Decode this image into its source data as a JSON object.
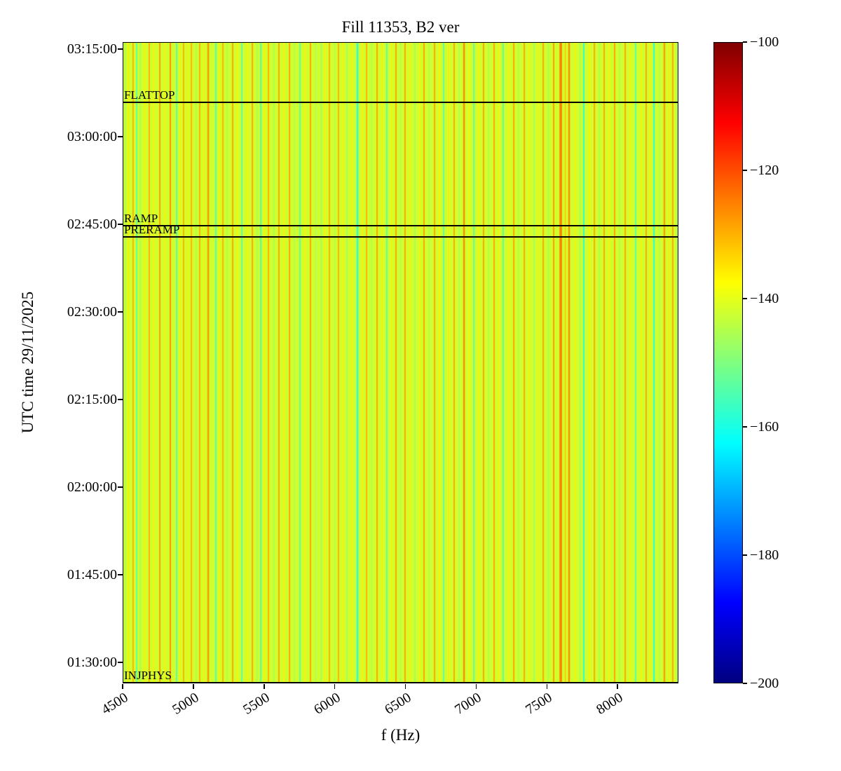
{
  "chart_data": {
    "type": "heatmap",
    "title": "Fill 11353, B2 ver",
    "xlabel": "f (Hz)",
    "ylabel": "UTC time 29/11/2025",
    "time_axis_date": "29/11/2025",
    "x_range_hz": [
      4500,
      8430
    ],
    "x_ticks_hz": [
      4500,
      5000,
      5500,
      6000,
      6500,
      7000,
      7500,
      8000
    ],
    "y_ticks_top_to_bottom": [
      "03:15:00",
      "03:00:00",
      "02:45:00",
      "02:30:00",
      "02:15:00",
      "02:00:00",
      "01:45:00",
      "01:30:00"
    ],
    "y_tick_fracs_from_top": [
      0.011,
      0.1476,
      0.2842,
      0.4208,
      0.5574,
      0.694,
      0.8306,
      0.9672
    ],
    "colorbar": {
      "colormap": "jet",
      "range_db": [
        -200,
        -100
      ],
      "tick_labels_top_to_bottom": [
        "−100",
        "−120",
        "−140",
        "−160",
        "−180",
        "−200"
      ],
      "tick_fracs_from_top": [
        0,
        0.2,
        0.4,
        0.6,
        0.8,
        1
      ]
    },
    "background_db": -142,
    "beam_modes": [
      {
        "label": "FLATTOP",
        "line_frac_from_top": 0.094
      },
      {
        "label": "RAMP",
        "line_frac_from_top": 0.286
      },
      {
        "label": "PRERAMP",
        "line_frac_from_top": 0.304
      },
      {
        "label": "INJPHYS",
        "line_frac_from_top": 0.999
      }
    ],
    "stripe_format": [
      "f_hz",
      "db",
      "width_hz"
    ],
    "stripes": [
      [
        4520,
        -146,
        8
      ],
      [
        4540,
        -136,
        8
      ],
      [
        4574,
        -130,
        10
      ],
      [
        4600,
        -156,
        8
      ],
      [
        4624,
        -146,
        8
      ],
      [
        4656,
        -136,
        8
      ],
      [
        4688,
        -130,
        10
      ],
      [
        4720,
        -136,
        8
      ],
      [
        4763,
        -128,
        10
      ],
      [
        4800,
        -136,
        8
      ],
      [
        4837,
        -127,
        10
      ],
      [
        4882,
        -157,
        8
      ],
      [
        4905,
        -136,
        8
      ],
      [
        4931,
        -130,
        10
      ],
      [
        4960,
        -136,
        8
      ],
      [
        4986,
        -130,
        10
      ],
      [
        5020,
        -146,
        8
      ],
      [
        5045,
        -130,
        10
      ],
      [
        5075,
        -136,
        8
      ],
      [
        5105,
        -127,
        12
      ],
      [
        5159,
        -157,
        8
      ],
      [
        5185,
        -136,
        8
      ],
      [
        5209,
        -130,
        10
      ],
      [
        5240,
        -146,
        8
      ],
      [
        5278,
        -129,
        10
      ],
      [
        5310,
        -136,
        8
      ],
      [
        5343,
        -156,
        8
      ],
      [
        5380,
        -136,
        8
      ],
      [
        5417,
        -129,
        10
      ],
      [
        5450,
        -146,
        8
      ],
      [
        5477,
        -157,
        8
      ],
      [
        5505,
        -136,
        8
      ],
      [
        5531,
        -130,
        10
      ],
      [
        5570,
        -146,
        8
      ],
      [
        5605,
        -129,
        10
      ],
      [
        5640,
        -136,
        8
      ],
      [
        5680,
        -129,
        10
      ],
      [
        5715,
        -146,
        8
      ],
      [
        5754,
        -156,
        8
      ],
      [
        5790,
        -136,
        8
      ],
      [
        5828,
        -129,
        10
      ],
      [
        5865,
        -146,
        8
      ],
      [
        5903,
        -147,
        8
      ],
      [
        5930,
        -136,
        8
      ],
      [
        5962,
        -130,
        10
      ],
      [
        6000,
        -146,
        8
      ],
      [
        6026,
        -130,
        10
      ],
      [
        6060,
        -136,
        8
      ],
      [
        6086,
        -147,
        8
      ],
      [
        6120,
        -136,
        8
      ],
      [
        6160,
        -159,
        12
      ],
      [
        6195,
        -136,
        8
      ],
      [
        6225,
        -130,
        10
      ],
      [
        6260,
        -146,
        8
      ],
      [
        6299,
        -129,
        10
      ],
      [
        6335,
        -136,
        8
      ],
      [
        6368,
        -156,
        8
      ],
      [
        6400,
        -136,
        8
      ],
      [
        6433,
        -129,
        10
      ],
      [
        6465,
        -146,
        8
      ],
      [
        6497,
        -129,
        10
      ],
      [
        6530,
        -136,
        8
      ],
      [
        6567,
        -147,
        8
      ],
      [
        6600,
        -136,
        8
      ],
      [
        6631,
        -129,
        10
      ],
      [
        6668,
        -146,
        8
      ],
      [
        6706,
        -129,
        10
      ],
      [
        6740,
        -136,
        8
      ],
      [
        6770,
        -156,
        8
      ],
      [
        6805,
        -136,
        8
      ],
      [
        6844,
        -129,
        10
      ],
      [
        6880,
        -146,
        8
      ],
      [
        6914,
        -126,
        12
      ],
      [
        6950,
        -136,
        8
      ],
      [
        6983,
        -156,
        8
      ],
      [
        7015,
        -136,
        8
      ],
      [
        7052,
        -129,
        10
      ],
      [
        7090,
        -146,
        8
      ],
      [
        7127,
        -129,
        10
      ],
      [
        7160,
        -136,
        8
      ],
      [
        7191,
        -156,
        8
      ],
      [
        7230,
        -136,
        8
      ],
      [
        7266,
        -129,
        10
      ],
      [
        7300,
        -146,
        8
      ],
      [
        7340,
        -129,
        10
      ],
      [
        7375,
        -136,
        8
      ],
      [
        7409,
        -147,
        8
      ],
      [
        7440,
        -136,
        8
      ],
      [
        7474,
        -129,
        10
      ],
      [
        7510,
        -146,
        8
      ],
      [
        7548,
        -128,
        10
      ],
      [
        7598,
        -125,
        18
      ],
      [
        7630,
        -132,
        8
      ],
      [
        7657,
        -126,
        12
      ],
      [
        7700,
        -136,
        8
      ],
      [
        7735,
        -146,
        8
      ],
      [
        7761,
        -158,
        10
      ],
      [
        7800,
        -136,
        8
      ],
      [
        7836,
        -129,
        10
      ],
      [
        7870,
        -146,
        8
      ],
      [
        7905,
        -129,
        10
      ],
      [
        7940,
        -136,
        8
      ],
      [
        7979,
        -129,
        10
      ],
      [
        8015,
        -146,
        8
      ],
      [
        8054,
        -129,
        10
      ],
      [
        8090,
        -136,
        8
      ],
      [
        8128,
        -156,
        8
      ],
      [
        8165,
        -136,
        8
      ],
      [
        8202,
        -129,
        10
      ],
      [
        8230,
        -136,
        8
      ],
      [
        8257,
        -159,
        10
      ],
      [
        8295,
        -146,
        8
      ],
      [
        8331,
        -128,
        12
      ],
      [
        8365,
        -136,
        8
      ],
      [
        8390,
        -129,
        10
      ],
      [
        8420,
        -146,
        8
      ]
    ]
  }
}
